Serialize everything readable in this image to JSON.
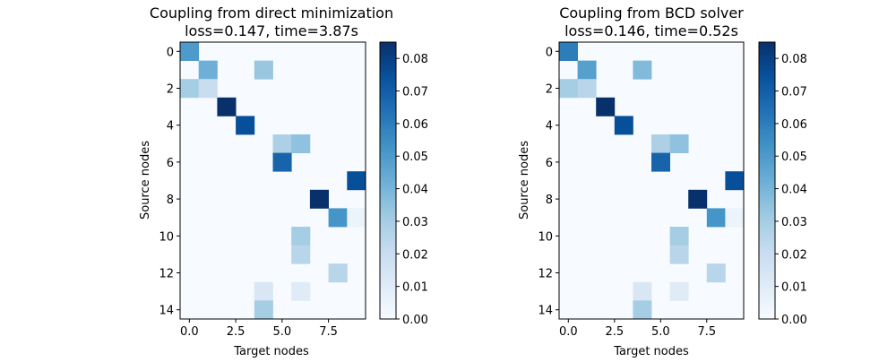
{
  "chart_data": [
    {
      "type": "heatmap",
      "title": "Coupling from direct minimization",
      "subtitle": "loss=0.147, time=3.87s",
      "xlabel": "Target nodes",
      "ylabel": "Source nodes",
      "x_ticks": [
        "0.0",
        "2.5",
        "5.0",
        "7.5"
      ],
      "y_ticks": [
        "0",
        "2",
        "4",
        "6",
        "8",
        "10",
        "12",
        "14"
      ],
      "colorbar_ticks": [
        "0.00",
        "0.01",
        "0.02",
        "0.03",
        "0.04",
        "0.05",
        "0.06",
        "0.07",
        "0.08"
      ],
      "colorbar_range": [
        0,
        0.085
      ],
      "colormap": "Blues",
      "rows": 15,
      "cols": 10,
      "cells": [
        {
          "row": 0,
          "col": 0,
          "value": 0.05
        },
        {
          "row": 1,
          "col": 1,
          "value": 0.042
        },
        {
          "row": 1,
          "col": 4,
          "value": 0.033
        },
        {
          "row": 2,
          "col": 0,
          "value": 0.03
        },
        {
          "row": 2,
          "col": 1,
          "value": 0.02
        },
        {
          "row": 3,
          "col": 2,
          "value": 0.085
        },
        {
          "row": 4,
          "col": 3,
          "value": 0.075
        },
        {
          "row": 5,
          "col": 5,
          "value": 0.028
        },
        {
          "row": 5,
          "col": 6,
          "value": 0.035
        },
        {
          "row": 6,
          "col": 5,
          "value": 0.068
        },
        {
          "row": 7,
          "col": 9,
          "value": 0.075
        },
        {
          "row": 8,
          "col": 7,
          "value": 0.085
        },
        {
          "row": 9,
          "col": 8,
          "value": 0.052
        },
        {
          "row": 9,
          "col": 9,
          "value": 0.005
        },
        {
          "row": 10,
          "col": 6,
          "value": 0.03
        },
        {
          "row": 11,
          "col": 6,
          "value": 0.025
        },
        {
          "row": 12,
          "col": 8,
          "value": 0.025
        },
        {
          "row": 13,
          "col": 4,
          "value": 0.013
        },
        {
          "row": 13,
          "col": 6,
          "value": 0.01
        },
        {
          "row": 14,
          "col": 4,
          "value": 0.03
        }
      ]
    },
    {
      "type": "heatmap",
      "title": "Coupling from BCD solver",
      "subtitle": "loss=0.146, time=0.52s",
      "xlabel": "Target nodes",
      "ylabel": "Source nodes",
      "x_ticks": [
        "0.0",
        "2.5",
        "5.0",
        "7.5"
      ],
      "y_ticks": [
        "0",
        "2",
        "4",
        "6",
        "8",
        "10",
        "12",
        "14"
      ],
      "colorbar_ticks": [
        "0.00",
        "0.01",
        "0.02",
        "0.03",
        "0.04",
        "0.05",
        "0.06",
        "0.07",
        "0.08"
      ],
      "colorbar_range": [
        0,
        0.085
      ],
      "colormap": "Blues",
      "rows": 15,
      "cols": 10,
      "cells": [
        {
          "row": 0,
          "col": 0,
          "value": 0.06
        },
        {
          "row": 1,
          "col": 1,
          "value": 0.048
        },
        {
          "row": 1,
          "col": 4,
          "value": 0.038
        },
        {
          "row": 2,
          "col": 0,
          "value": 0.03
        },
        {
          "row": 2,
          "col": 1,
          "value": 0.025
        },
        {
          "row": 3,
          "col": 2,
          "value": 0.085
        },
        {
          "row": 4,
          "col": 3,
          "value": 0.075
        },
        {
          "row": 5,
          "col": 5,
          "value": 0.028
        },
        {
          "row": 5,
          "col": 6,
          "value": 0.035
        },
        {
          "row": 6,
          "col": 5,
          "value": 0.068
        },
        {
          "row": 7,
          "col": 9,
          "value": 0.075
        },
        {
          "row": 8,
          "col": 7,
          "value": 0.085
        },
        {
          "row": 9,
          "col": 8,
          "value": 0.052
        },
        {
          "row": 9,
          "col": 9,
          "value": 0.005
        },
        {
          "row": 10,
          "col": 6,
          "value": 0.03
        },
        {
          "row": 11,
          "col": 6,
          "value": 0.025
        },
        {
          "row": 12,
          "col": 8,
          "value": 0.025
        },
        {
          "row": 13,
          "col": 4,
          "value": 0.013
        },
        {
          "row": 13,
          "col": 6,
          "value": 0.01
        },
        {
          "row": 14,
          "col": 4,
          "value": 0.03
        }
      ]
    }
  ]
}
